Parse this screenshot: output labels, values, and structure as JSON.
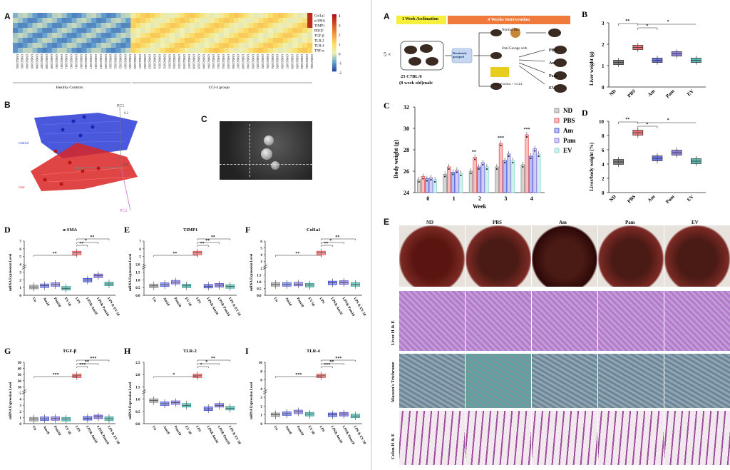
{
  "left_figure": {
    "panel_letters": [
      "A",
      "B",
      "C",
      "D",
      "E",
      "F",
      "G",
      "H",
      "I"
    ],
    "heatmap": {
      "rows": [
        "Col1a1",
        "α-SMA",
        "TIMP1",
        "PDGF",
        "TGF-β",
        "TLR-2",
        "TLR-4",
        "TNF-α"
      ],
      "colorbar_ticks": [
        "4",
        "3",
        "2",
        "1",
        "0",
        "-1",
        "-2"
      ],
      "group_labels": [
        "Healthy Controls",
        "CCl-4 groups"
      ],
      "sample_ids": [
        "GSM4231802",
        "GSM4231803",
        "GSM4231804",
        "GSM4231805",
        "GSM4231806",
        "GSM4231807",
        "GSM4231808",
        "GSM4231809",
        "GSM4231810",
        "GSM4231811",
        "GSM4231812",
        "GSM4231813",
        "GSM4231814",
        "GSM4231815",
        "GSM4231816",
        "GSM4231817",
        "GSM4231818",
        "GSM4231819",
        "GSM4231820",
        "GSM4231821",
        "GSM4231822",
        "GSM4231823",
        "GSM4231824",
        "GSM4231825",
        "GSM4231826",
        "GSM4231827",
        "GSM4231828",
        "GSM4231829",
        "GSM4231830",
        "GSM4231831",
        "GSM4231832",
        "GSM4231833",
        "GSM4231834",
        "GSM4231835",
        "GSM4231836",
        "GSM4231837",
        "GSM4231838",
        "GSM4231839",
        "GSM4231840",
        "GSM4231841",
        "GSM4231842",
        "GSM4231843",
        "GSM4231844",
        "GSM4231845",
        "GSM4231846",
        "GSM4231847",
        "GSM4231848",
        "GSM4231849",
        "GSM4231850",
        "GSM4231851",
        "GSM4231852",
        "GSM4231853",
        "GSM4231854",
        "GSM4231855",
        "GSM4231856",
        "GSM4231857",
        "GSM4231858",
        "GSM4231859",
        "GSM4231860",
        "GSM4231861",
        "GSM4231862"
      ]
    },
    "pca": {
      "labels": [
        "PC1",
        "PC2",
        "PC3",
        "0.2",
        "0.4",
        "0.6",
        "control",
        "case"
      ]
    },
    "box_panels": [
      {
        "letter": "D",
        "title": "α-SMA",
        "ylabel": "mRNA Expression Level",
        "yticks": [
          "0",
          "1",
          "2",
          "3",
          "4",
          "5",
          "6",
          "7"
        ],
        "sig": [
          "**",
          "**",
          "*",
          "**"
        ]
      },
      {
        "letter": "E",
        "title": "TIMP1",
        "ylabel": "mRNA Expression Level",
        "yticks": [
          "0.0",
          "0.5",
          "1.0",
          "1.5",
          "2.0",
          "5",
          "6",
          "7"
        ],
        "sig": [
          "**",
          "**",
          "**",
          "**"
        ]
      },
      {
        "letter": "F",
        "title": "Col1a1",
        "ylabel": "mRNA Expression Level",
        "yticks": [
          "0.0",
          "0.5",
          "1.0",
          "1.5",
          "2",
          "3",
          "4",
          "5",
          "6"
        ],
        "sig": [
          "**",
          "**",
          "*",
          "**"
        ]
      },
      {
        "letter": "G",
        "title": "TGF-β",
        "ylabel": "mRNA Expression Level",
        "yticks": [
          "0",
          "1",
          "2",
          "3",
          "4",
          "5",
          "10",
          "20",
          "30",
          "40",
          "50"
        ],
        "sig": [
          "***",
          "***",
          "**",
          "***"
        ]
      },
      {
        "letter": "H",
        "title": "TLR-2",
        "ylabel": "mRNA Expression Level",
        "yticks": [
          "0.0",
          "0.5",
          "1.0",
          "1.5",
          "2.0",
          "2.5"
        ],
        "sig": [
          "*",
          "*",
          "*",
          "**"
        ]
      },
      {
        "letter": "I",
        "title": "TLR-4",
        "ylabel": "mRNA Expression Level",
        "yticks": [
          "0",
          "1",
          "2",
          "3",
          "4",
          "6",
          "8",
          "10"
        ],
        "sig": [
          "***",
          "***",
          "**",
          "***"
        ]
      }
    ],
    "box_categories": [
      "Un",
      "Am10",
      "Pam10",
      "EV 50",
      "LPS",
      "LPS& Am10",
      "LPS& Pam10",
      "LPS & EV 50"
    ]
  },
  "right_figure": {
    "timeline": {
      "acclimation": "1 Week Acclimation",
      "intervention": "4 Weeks Intervention",
      "multiplier": "5 ×",
      "strain": "25 C7BL/6",
      "age": "(8 week old)male",
      "randomly": "Randomly grouped",
      "normal_diet": "Normal Diet",
      "oral_gavage": "Oral Gavage with",
      "hfd": "High Fat Diet + CCL4",
      "groups": [
        "PBS",
        "Am",
        "Pam",
        "EV"
      ]
    },
    "liver_weight": {
      "letter": "B",
      "ylabel": "Liver weight (g)",
      "yticks": [
        "0",
        "1",
        "2",
        "3"
      ],
      "categories": [
        "ND",
        "PBS",
        "Am",
        "Pam",
        "EV"
      ],
      "colors": [
        "#555555",
        "#e8474b",
        "#3b48d6",
        "#6a5acd",
        "#2aa198"
      ],
      "sig": [
        "**",
        "*",
        "*"
      ]
    },
    "body_weight": {
      "letter": "C",
      "ylabel": "Body weight (g)",
      "xlabel": "Week",
      "yticks": [
        "24",
        "26",
        "28",
        "30",
        "32"
      ],
      "xticks": [
        "0",
        "1",
        "2",
        "3",
        "4"
      ],
      "legend": [
        "ND",
        "PBS",
        "Am",
        "Pam",
        "EV"
      ],
      "sig": [
        "**",
        "***",
        "***"
      ]
    },
    "liver_body": {
      "letter": "D",
      "ylabel": "Liver/body weight (%)",
      "yticks": [
        "0",
        "2",
        "4",
        "6",
        "8",
        "10"
      ],
      "categories": [
        "ND",
        "PBS",
        "Am",
        "Pam",
        "EV"
      ],
      "sig": [
        "**",
        "*",
        "*"
      ]
    },
    "histology": {
      "letter": "E",
      "columns": [
        "ND",
        "PBS",
        "Am",
        "Pam",
        "EV"
      ],
      "rows": [
        "Liver H & E",
        "Masson's Trichrome",
        "Colon H & E"
      ],
      "scale": "50 μ"
    }
  },
  "chart_data": [
    {
      "type": "heatmap",
      "title": "",
      "rows": [
        "Col1a1",
        "α-SMA",
        "TIMP1",
        "PDGF",
        "TGF-β",
        "TLR-2",
        "TLR-4",
        "TNF-α"
      ],
      "groups": [
        "Healthy Controls",
        "CCl-4 groups"
      ],
      "zlim": [
        -2,
        4
      ]
    },
    {
      "type": "bar",
      "title": "α-SMA",
      "categories": [
        "Un",
        "Am10",
        "Pam10",
        "EV 50",
        "LPS",
        "LPS& Am10",
        "LPS& Pam10",
        "LPS & EV 50"
      ],
      "values": [
        0.8,
        1.0,
        1.2,
        0.6,
        6.2,
        1.9,
        2.6,
        1.3
      ],
      "ylabel": "mRNA Expression Level",
      "ylim": [
        0,
        7
      ]
    },
    {
      "type": "bar",
      "title": "TIMP1",
      "categories": [
        "Un",
        "Am10",
        "Pam10",
        "EV 50",
        "LPS",
        "LPS& Am10",
        "LPS& Pam10",
        "LPS & EV 50"
      ],
      "values": [
        1.0,
        1.2,
        1.6,
        1.0,
        6.3,
        0.95,
        1.1,
        0.9
      ],
      "ylabel": "mRNA Expression Level",
      "ylim": [
        0,
        7
      ]
    },
    {
      "type": "bar",
      "title": "Col1a1",
      "categories": [
        "Un",
        "Am10",
        "Pam10",
        "EV 50",
        "LPS",
        "LPS& Am10",
        "LPS& Pam10",
        "LPS & EV 50"
      ],
      "values": [
        1.0,
        1.0,
        1.05,
        0.9,
        5.1,
        1.2,
        1.25,
        1.0
      ],
      "ylabel": "mRNA Expression Level",
      "ylim": [
        0,
        6
      ]
    },
    {
      "type": "bar",
      "title": "TGF-β",
      "categories": [
        "Un",
        "Am10",
        "Pam10",
        "EV 50",
        "LPS",
        "LPS& Am10",
        "LPS& Pam10",
        "LPS & EV 50"
      ],
      "values": [
        0.8,
        1.3,
        1.5,
        0.8,
        45,
        1.7,
        3.2,
        1.4
      ],
      "ylabel": "mRNA Expression Level",
      "ylim": [
        0,
        50
      ]
    },
    {
      "type": "bar",
      "title": "TLR-2",
      "categories": [
        "Un",
        "Am10",
        "Pam10",
        "EV 50",
        "LPS",
        "LPS& Am10",
        "LPS& Pam10",
        "LPS & EV 50"
      ],
      "values": [
        0.95,
        0.8,
        0.85,
        0.72,
        2.15,
        0.55,
        0.72,
        0.58
      ],
      "ylabel": "mRNA Expression Level",
      "ylim": [
        0,
        2.5
      ]
    },
    {
      "type": "bar",
      "title": "TLR-4",
      "categories": [
        "Un",
        "Am10",
        "Pam10",
        "EV 50",
        "LPS",
        "LPS& Am10",
        "LPS& Pam10",
        "LPS & EV 50"
      ],
      "values": [
        0.9,
        1.1,
        1.4,
        1.0,
        7.6,
        0.9,
        1.0,
        0.7
      ],
      "ylabel": "mRNA Expression Level",
      "ylim": [
        0,
        10
      ]
    },
    {
      "type": "bar",
      "title": "",
      "categories": [
        "ND",
        "PBS",
        "Am",
        "Pam",
        "EV"
      ],
      "values": [
        1.15,
        1.85,
        1.25,
        1.55,
        1.25
      ],
      "ylabel": "Liver weight (g)",
      "ylim": [
        0,
        3
      ]
    },
    {
      "type": "bar",
      "title": "",
      "categories": [
        "0",
        "1",
        "2",
        "3",
        "4"
      ],
      "series": [
        {
          "name": "ND",
          "values": [
            25.2,
            25.7,
            26.0,
            26.4,
            26.6
          ]
        },
        {
          "name": "PBS",
          "values": [
            25.5,
            26.4,
            27.3,
            28.6,
            29.4
          ]
        },
        {
          "name": "Am",
          "values": [
            25.3,
            25.9,
            26.4,
            27.0,
            27.4
          ]
        },
        {
          "name": "Pam",
          "values": [
            25.4,
            26.1,
            26.8,
            27.6,
            28.1
          ]
        },
        {
          "name": "EV",
          "values": [
            25.2,
            25.8,
            26.4,
            27.0,
            27.6
          ]
        }
      ],
      "xlabel": "Week",
      "ylabel": "Body weight (g)",
      "ylim": [
        24,
        32
      ]
    },
    {
      "type": "bar",
      "title": "",
      "categories": [
        "ND",
        "PBS",
        "Am",
        "Pam",
        "EV"
      ],
      "values": [
        4.3,
        8.4,
        4.8,
        5.6,
        4.4
      ],
      "ylabel": "Liver/body weight (%)",
      "ylim": [
        0,
        10
      ]
    }
  ]
}
